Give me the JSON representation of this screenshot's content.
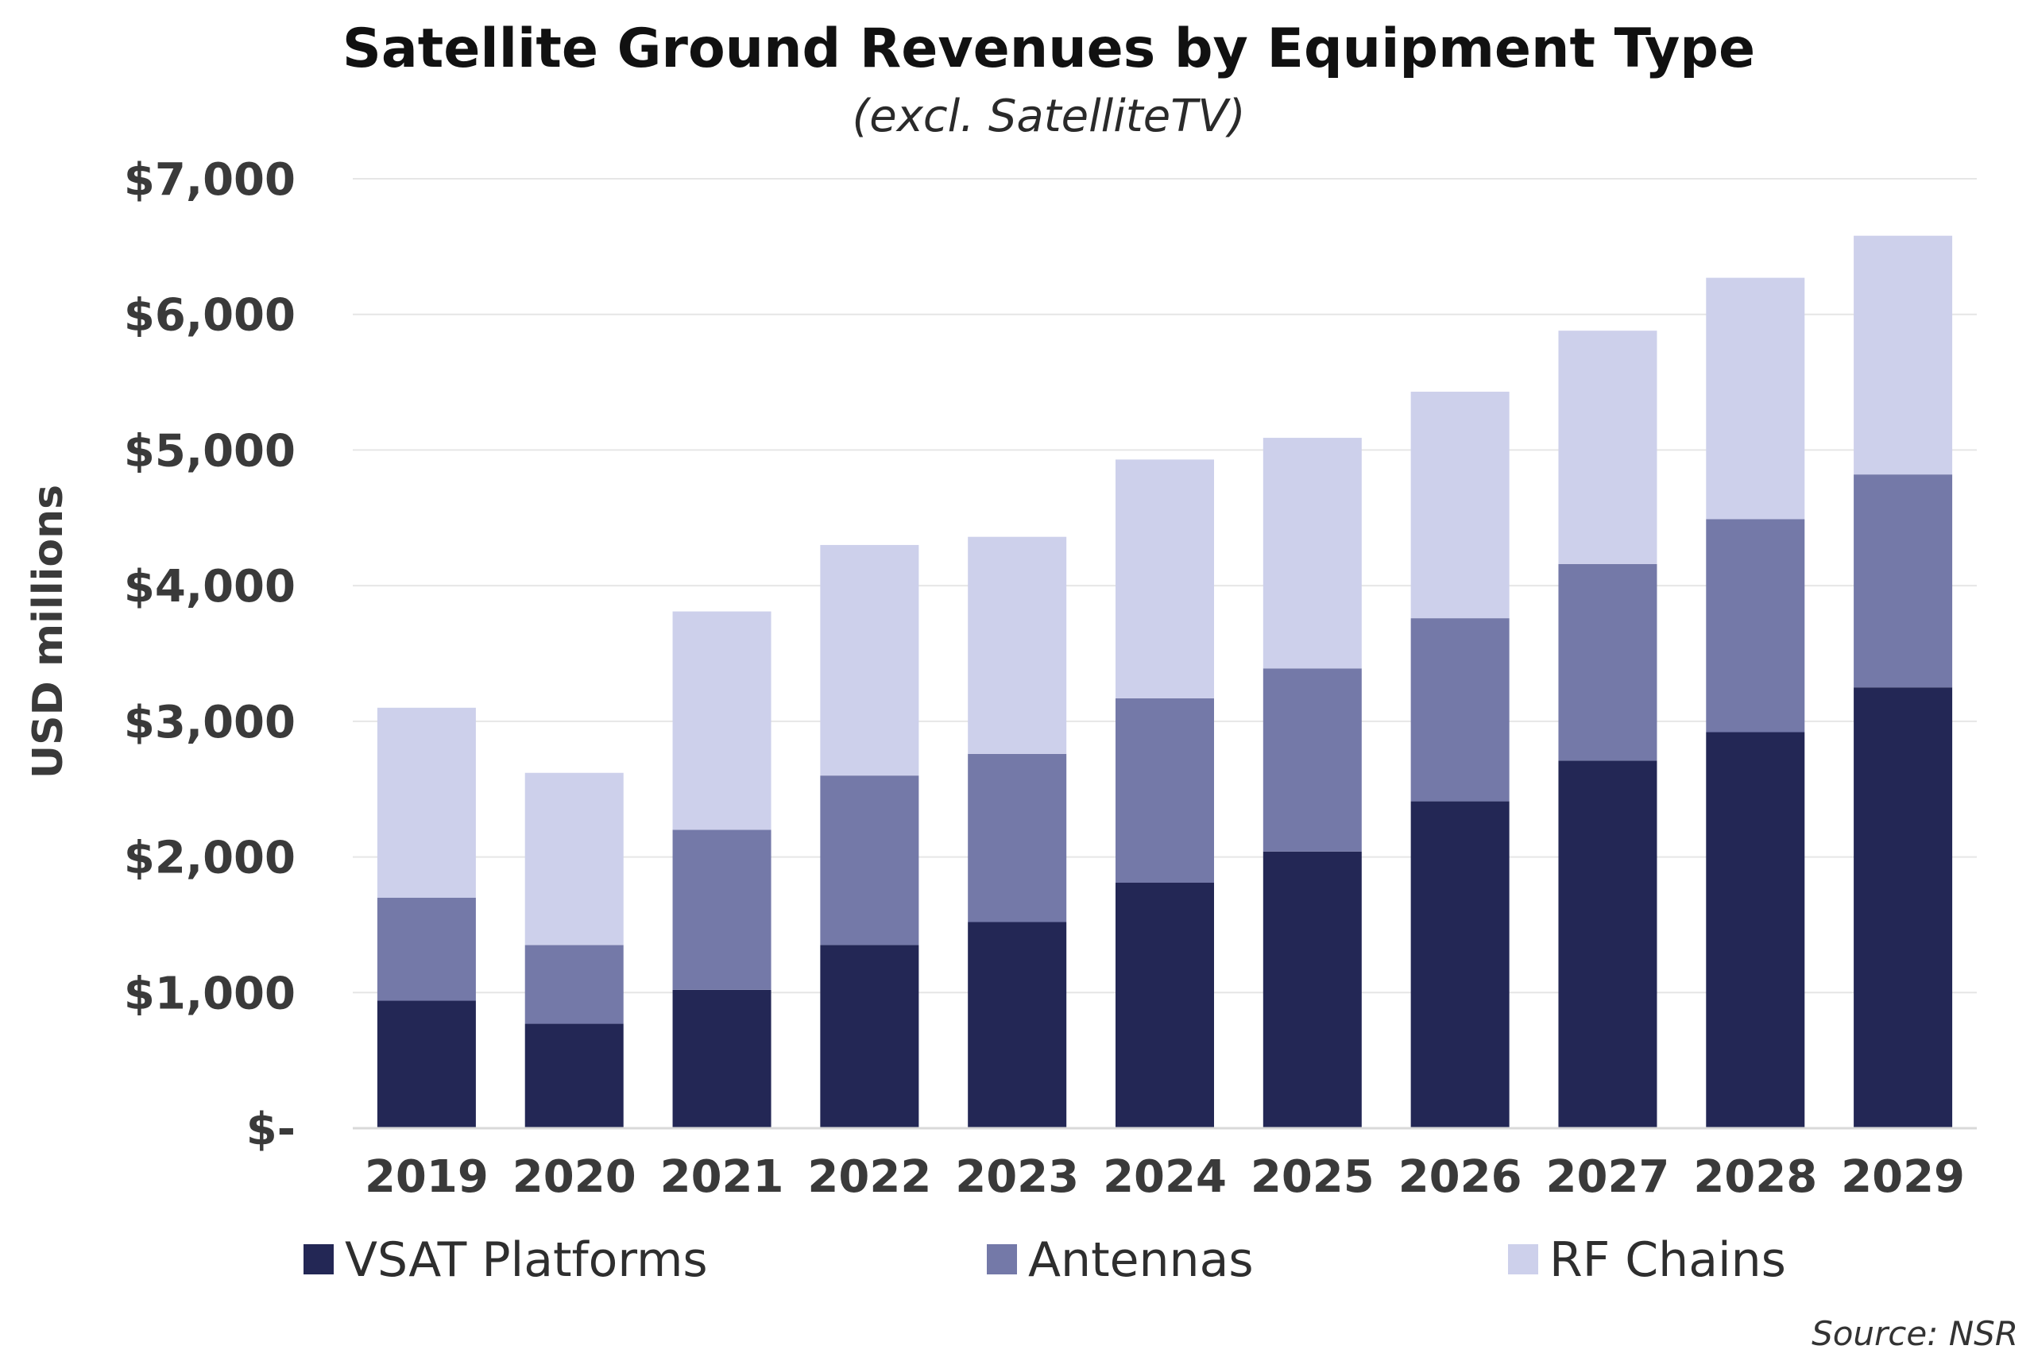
{
  "chart_data": {
    "type": "bar",
    "stacked": true,
    "title": "Satellite Ground Revenues by Equipment Type",
    "subtitle": "(excl. SatelliteTV)",
    "xlabel": "",
    "ylabel": "USD millions",
    "ylim": [
      0,
      7000
    ],
    "grid": true,
    "legend_position": "bottom",
    "source": "Source: NSR",
    "categories": [
      "2019",
      "2020",
      "2021",
      "2022",
      "2023",
      "2024",
      "2025",
      "2026",
      "2027",
      "2028",
      "2029"
    ],
    "y_ticks": [
      {
        "value": 0,
        "label": "$-"
      },
      {
        "value": 1000,
        "label": "$1,000"
      },
      {
        "value": 2000,
        "label": "$2,000"
      },
      {
        "value": 3000,
        "label": "$3,000"
      },
      {
        "value": 4000,
        "label": "$4,000"
      },
      {
        "value": 5000,
        "label": "$5,000"
      },
      {
        "value": 6000,
        "label": "$6,000"
      },
      {
        "value": 7000,
        "label": "$7,000"
      }
    ],
    "series": [
      {
        "name": "VSAT Platforms",
        "color": "#232755",
        "values": [
          940,
          770,
          1020,
          1350,
          1520,
          1810,
          2040,
          2410,
          2710,
          2920,
          3250
        ]
      },
      {
        "name": "Antennas",
        "color": "#7479a8",
        "values": [
          760,
          580,
          1180,
          1250,
          1240,
          1360,
          1350,
          1350,
          1450,
          1570,
          1570
        ]
      },
      {
        "name": "RF Chains",
        "color": "#cdd0eb",
        "values": [
          1400,
          1270,
          1610,
          1700,
          1600,
          1760,
          1700,
          1670,
          1720,
          1780,
          1760
        ]
      }
    ]
  }
}
